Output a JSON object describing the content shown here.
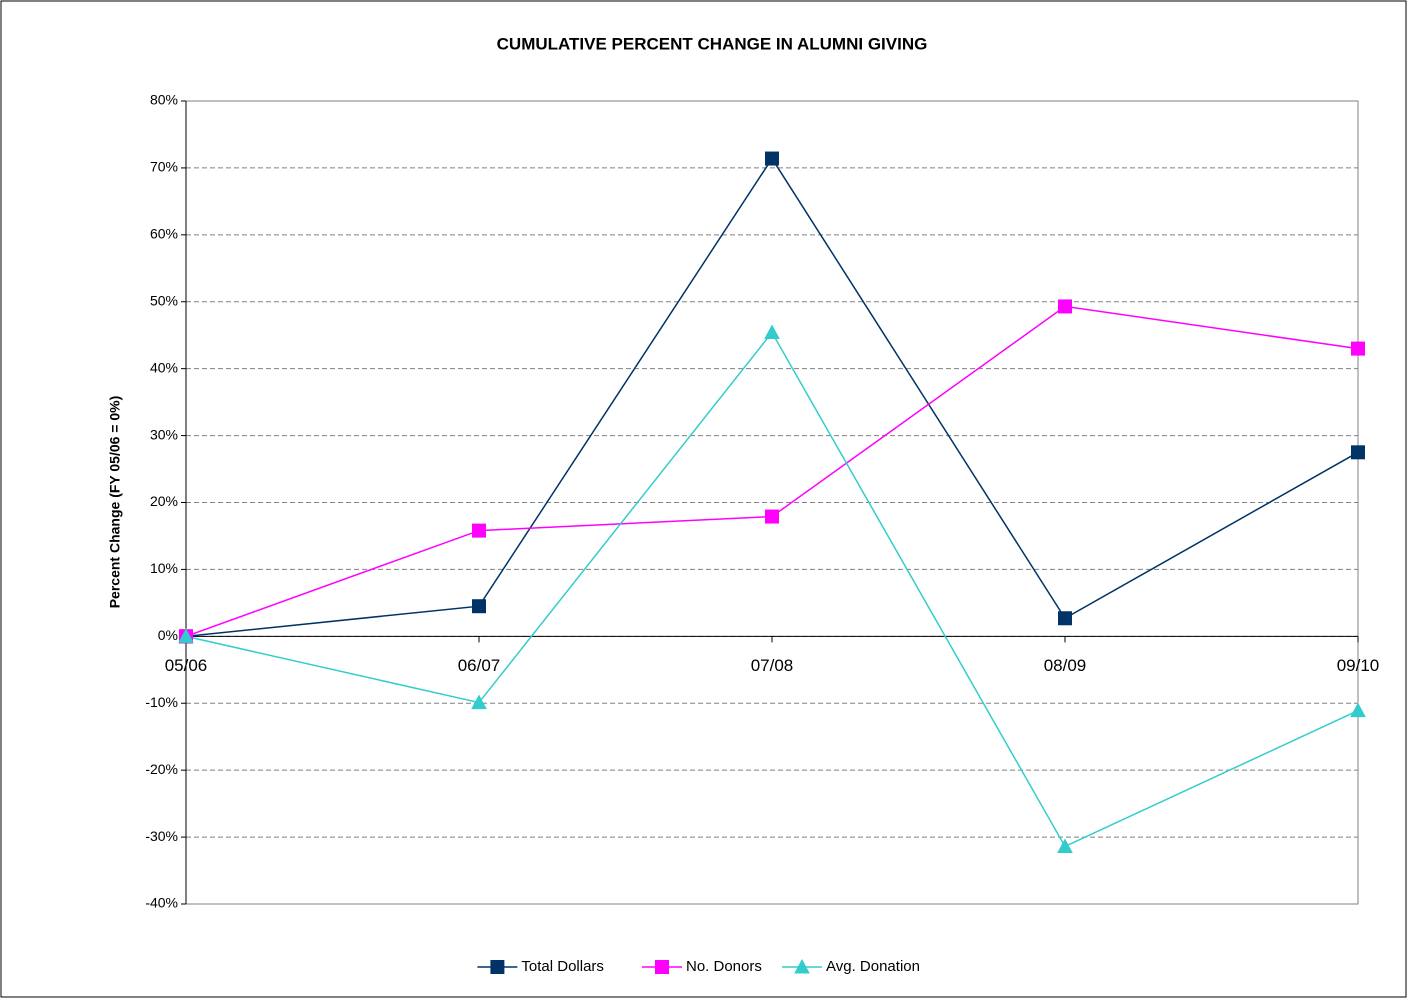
{
  "chart_data": {
    "type": "line",
    "title": "CUMULATIVE PERCENT CHANGE IN ALUMNI GIVING",
    "y_label": "Percent Change (FY 05/06 = 0%)",
    "categories": [
      "05/06",
      "06/07",
      "07/08",
      "08/09",
      "09/10"
    ],
    "series": [
      {
        "name": "Total Dollars",
        "color": "#003366",
        "marker": "square",
        "values": [
          0,
          4.5,
          71.4,
          2.7,
          27.5
        ]
      },
      {
        "name": "No. Donors",
        "color": "#ff00ff",
        "marker": "square",
        "values": [
          0,
          15.8,
          17.9,
          49.3,
          43.0
        ]
      },
      {
        "name": "Avg. Donation",
        "color": "#33cccc",
        "marker": "triangle",
        "values": [
          0,
          -9.9,
          45.4,
          -31.4,
          -11.1
        ]
      }
    ],
    "ylim": [
      -40,
      80
    ],
    "yticks": [
      {
        "value": -40,
        "label": "-40%"
      },
      {
        "value": -30,
        "label": "-30%"
      },
      {
        "value": -20,
        "label": "-20%"
      },
      {
        "value": -10,
        "label": "-10%"
      },
      {
        "value": 0,
        "label": "0%"
      },
      {
        "value": 10,
        "label": "10%"
      },
      {
        "value": 20,
        "label": "20%"
      },
      {
        "value": 30,
        "label": "30%"
      },
      {
        "value": 40,
        "label": "40%"
      },
      {
        "value": 50,
        "label": "50%"
      },
      {
        "value": 60,
        "label": "60%"
      },
      {
        "value": 70,
        "label": "70%"
      },
      {
        "value": 80,
        "label": "80%"
      }
    ],
    "grid": true,
    "legend": "bottom"
  }
}
